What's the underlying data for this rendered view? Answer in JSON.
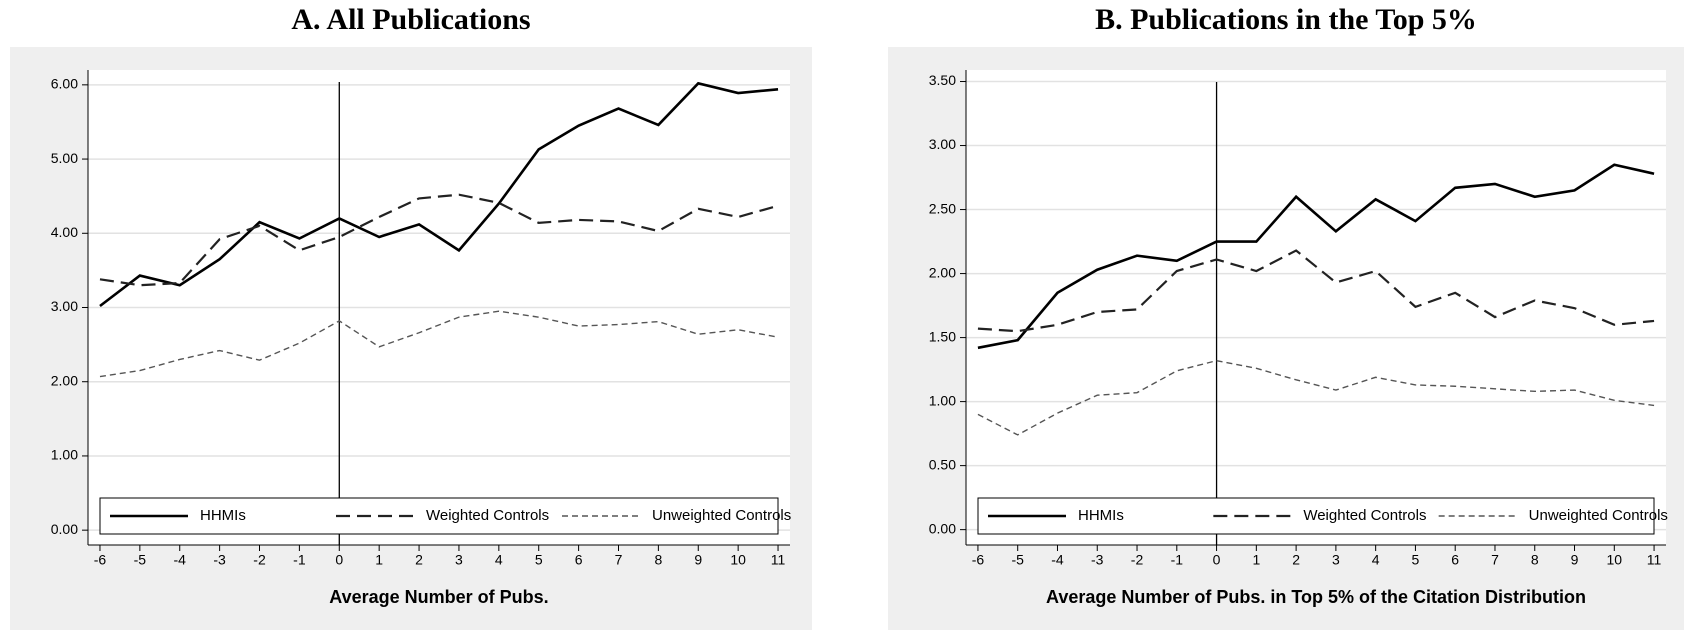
{
  "chart_data": [
    {
      "type": "line",
      "title": "A. All Publications",
      "xlabel": "Average Number of Pubs.",
      "x": [
        -6,
        -5,
        -4,
        -3,
        -2,
        -1,
        0,
        1,
        2,
        3,
        4,
        5,
        6,
        7,
        8,
        9,
        10,
        11
      ],
      "xlim": [
        -6.3,
        11.3
      ],
      "xticks": [
        -6,
        -5,
        -4,
        -3,
        -2,
        -1,
        0,
        1,
        2,
        3,
        4,
        5,
        6,
        7,
        8,
        9,
        10,
        11
      ],
      "ylim": [
        -0.2,
        6.2
      ],
      "yticks": [
        {
          "value": 0,
          "label": "0.00"
        },
        {
          "value": 1,
          "label": "1.00"
        },
        {
          "value": 2,
          "label": "2.00"
        },
        {
          "value": 3,
          "label": "3.00"
        },
        {
          "value": 4,
          "label": "4.00"
        },
        {
          "value": 5,
          "label": "5.00"
        },
        {
          "value": 6,
          "label": "6.00"
        }
      ],
      "grid": true,
      "vline": 0,
      "legend": "bottom",
      "series": [
        {
          "name": "HHMIs",
          "color": "#000000",
          "style": "solid",
          "values": [
            3.02,
            3.43,
            3.3,
            3.65,
            4.15,
            3.93,
            4.2,
            3.95,
            4.12,
            3.77,
            4.4,
            5.13,
            5.45,
            5.68,
            5.46,
            6.02,
            5.89,
            5.94
          ]
        },
        {
          "name": "Weighted Controls",
          "color": "#222222",
          "style": "dashed",
          "values": [
            3.38,
            3.3,
            3.33,
            3.92,
            4.1,
            3.77,
            3.95,
            4.22,
            4.47,
            4.52,
            4.41,
            4.14,
            4.18,
            4.16,
            4.03,
            4.33,
            4.22,
            4.37
          ]
        },
        {
          "name": "Unweighted Controls",
          "color": "#555555",
          "style": "dotted",
          "values": [
            2.07,
            2.15,
            2.3,
            2.42,
            2.29,
            2.52,
            2.82,
            2.47,
            2.66,
            2.87,
            2.95,
            2.87,
            2.75,
            2.77,
            2.81,
            2.64,
            2.7,
            2.6
          ]
        }
      ]
    },
    {
      "type": "line",
      "title": "B. Publications in the Top 5%",
      "xlabel": "Average Number of Pubs. in Top 5% of the Citation Distribution",
      "x": [
        -6,
        -5,
        -4,
        -3,
        -2,
        -1,
        0,
        1,
        2,
        3,
        4,
        5,
        6,
        7,
        8,
        9,
        10,
        11
      ],
      "xlim": [
        -6.3,
        11.3
      ],
      "xticks": [
        -6,
        -5,
        -4,
        -3,
        -2,
        -1,
        0,
        1,
        2,
        3,
        4,
        5,
        6,
        7,
        8,
        9,
        10,
        11
      ],
      "ylim": [
        -0.12,
        3.59
      ],
      "yticks": [
        {
          "value": 0,
          "label": "0.00"
        },
        {
          "value": 0.5,
          "label": "0.50"
        },
        {
          "value": 1,
          "label": "1.00"
        },
        {
          "value": 1.5,
          "label": "1.50"
        },
        {
          "value": 2,
          "label": "2.00"
        },
        {
          "value": 2.5,
          "label": "2.50"
        },
        {
          "value": 3,
          "label": "3.00"
        },
        {
          "value": 3.5,
          "label": "3.50"
        }
      ],
      "grid": true,
      "vline": 0,
      "legend": "bottom",
      "series": [
        {
          "name": "HHMIs",
          "color": "#000000",
          "style": "solid",
          "values": [
            1.42,
            1.48,
            1.85,
            2.03,
            2.14,
            2.1,
            2.25,
            2.25,
            2.6,
            2.33,
            2.58,
            2.41,
            2.67,
            2.7,
            2.6,
            2.65,
            2.85,
            2.78
          ]
        },
        {
          "name": "Weighted Controls",
          "color": "#222222",
          "style": "dashed",
          "values": [
            1.57,
            1.55,
            1.6,
            1.7,
            1.72,
            2.02,
            2.11,
            2.02,
            2.18,
            1.93,
            2.02,
            1.74,
            1.85,
            1.66,
            1.79,
            1.73,
            1.6,
            1.63
          ]
        },
        {
          "name": "Unweighted Controls",
          "color": "#555555",
          "style": "dotted",
          "values": [
            0.9,
            0.74,
            0.91,
            1.05,
            1.07,
            1.24,
            1.32,
            1.26,
            1.17,
            1.09,
            1.19,
            1.13,
            1.12,
            1.1,
            1.08,
            1.09,
            1.01,
            0.97
          ]
        }
      ]
    }
  ]
}
